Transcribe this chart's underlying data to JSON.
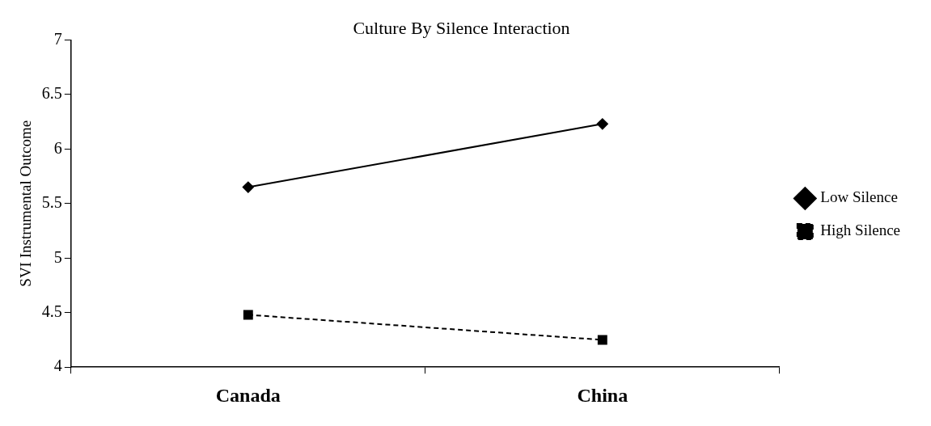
{
  "chart_data": {
    "type": "line",
    "title": "Culture By Silence Interaction",
    "ylabel": "SVI Instrumental Outcome",
    "categories": [
      "Canada",
      "China"
    ],
    "series": [
      {
        "name": "Low Silence",
        "color": "#000000",
        "values": [
          5.65,
          6.23
        ],
        "marker": "diamond",
        "line_style": "solid"
      },
      {
        "name": "High Silence",
        "color": "#000000",
        "values": [
          4.48,
          4.25
        ],
        "marker": "square",
        "line_style": "dashed"
      }
    ],
    "ylim": [
      4,
      7
    ],
    "yticks": [
      4,
      4.5,
      5,
      5.5,
      6,
      6.5,
      7
    ],
    "grid": false,
    "legend": "right"
  }
}
